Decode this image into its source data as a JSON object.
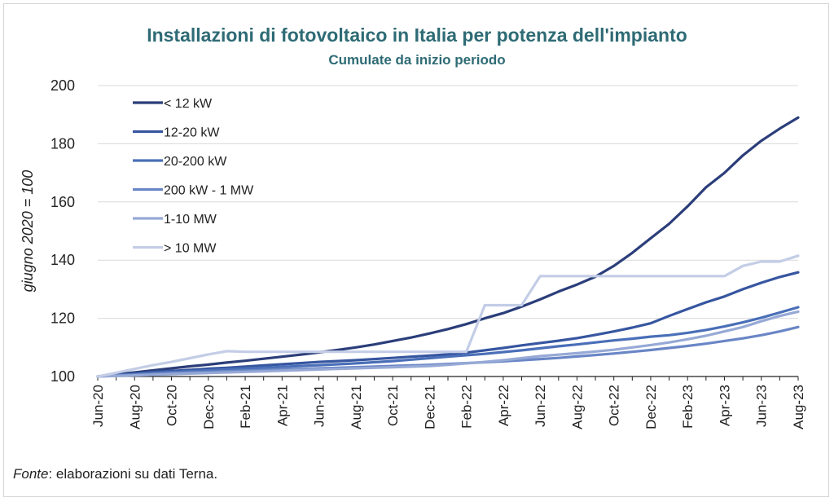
{
  "title": "Installazioni di fotovoltaico in Italia per potenza dell'impianto",
  "subtitle": "Cumulate da inizio periodo",
  "source_label": "Fonte",
  "source_text": ": elaborazioni su dati Terna.",
  "chart_data": {
    "type": "line",
    "title": "Installazioni di fotovoltaico in Italia per potenza dell'impianto",
    "subtitle": "Cumulate da inizio periodo",
    "ylabel": "giugno 2020 = 100",
    "xlabel": "",
    "ylim": [
      100,
      200
    ],
    "yticks": [
      100,
      120,
      140,
      160,
      180,
      200
    ],
    "grid": true,
    "legend_position": "top-left",
    "x": [
      "Jun-20",
      "Jul-20",
      "Aug-20",
      "Sep-20",
      "Oct-20",
      "Nov-20",
      "Dec-20",
      "Jan-21",
      "Feb-21",
      "Mar-21",
      "Apr-21",
      "May-21",
      "Jun-21",
      "Jul-21",
      "Aug-21",
      "Sep-21",
      "Oct-21",
      "Nov-21",
      "Dec-21",
      "Jan-22",
      "Feb-22",
      "Mar-22",
      "Apr-22",
      "May-22",
      "Jun-22",
      "Jul-22",
      "Aug-22",
      "Sep-22",
      "Oct-22",
      "Nov-22",
      "Dec-22",
      "Jan-23",
      "Feb-23",
      "Mar-23",
      "Apr-23",
      "May-23",
      "Jun-23",
      "Jul-23",
      "Aug-23"
    ],
    "xtick_labels": [
      "Jun-20",
      "Aug-20",
      "Oct-20",
      "Dec-20",
      "Feb-21",
      "Apr-21",
      "Jun-21",
      "Aug-21",
      "Oct-21",
      "Dec-21",
      "Feb-22",
      "Apr-22",
      "Jun-22",
      "Aug-22",
      "Oct-22",
      "Dec-22",
      "Feb-23",
      "Apr-23",
      "Jun-23",
      "Aug-23"
    ],
    "series": [
      {
        "name": "< 12 kW",
        "color": "#2b3e7a",
        "values": [
          100,
          100.7,
          101.4,
          102.1,
          102.8,
          103.5,
          104.1,
          104.8,
          105.4,
          106.1,
          106.8,
          107.5,
          108.3,
          109.1,
          110.0,
          111.0,
          112.2,
          113.4,
          114.8,
          116.3,
          118.0,
          120.0,
          121.8,
          124.0,
          126.5,
          129.2,
          131.6,
          134.3,
          138.0,
          142.5,
          147.5,
          152.5,
          158.5,
          165.0,
          170.0,
          176.0,
          181.0,
          185.2,
          189.0
        ]
      },
      {
        "name": "12-20 kW",
        "color": "#3656a0",
        "values": [
          100,
          100.5,
          101.0,
          101.5,
          101.9,
          102.3,
          102.7,
          103.0,
          103.4,
          103.8,
          104.2,
          104.6,
          105.0,
          105.3,
          105.6,
          106.0,
          106.4,
          106.8,
          107.2,
          107.6,
          108.2,
          109.0,
          109.8,
          110.7,
          111.5,
          112.3,
          113.2,
          114.3,
          115.5,
          116.8,
          118.3,
          120.8,
          123.2,
          125.5,
          127.5,
          130.0,
          132.2,
          134.2,
          135.8
        ]
      },
      {
        "name": "20-200 kW",
        "color": "#4a6fb8",
        "values": [
          100,
          100.4,
          100.8,
          101.2,
          101.5,
          101.8,
          102.1,
          102.4,
          102.7,
          103.0,
          103.3,
          103.6,
          103.9,
          104.2,
          104.5,
          104.9,
          105.3,
          105.8,
          106.3,
          106.8,
          107.3,
          107.8,
          108.4,
          109.0,
          109.7,
          110.4,
          111.0,
          111.7,
          112.4,
          113.0,
          113.7,
          114.2,
          115.0,
          116.0,
          117.2,
          118.6,
          120.2,
          122.0,
          123.8
        ]
      },
      {
        "name": "200 kW - 1 MW",
        "color": "#6a86c6",
        "values": [
          100,
          100.3,
          100.6,
          100.9,
          101.2,
          101.4,
          101.6,
          101.8,
          102.0,
          102.2,
          102.4,
          102.6,
          102.8,
          103.0,
          103.2,
          103.4,
          103.6,
          103.8,
          104.0,
          104.3,
          104.6,
          104.9,
          105.2,
          105.6,
          106.0,
          106.4,
          106.9,
          107.4,
          107.9,
          108.5,
          109.1,
          109.8,
          110.5,
          111.3,
          112.2,
          113.1,
          114.2,
          115.5,
          117.0
        ]
      },
      {
        "name": "1-10 MW",
        "color": "#96a9d6",
        "values": [
          100,
          100.2,
          100.4,
          100.6,
          100.8,
          101.0,
          101.2,
          101.4,
          101.6,
          101.8,
          102.0,
          102.2,
          102.4,
          102.6,
          102.8,
          103.0,
          103.2,
          103.4,
          103.6,
          104.0,
          104.5,
          105.0,
          105.6,
          106.3,
          107.0,
          107.5,
          108.0,
          108.6,
          109.2,
          110.0,
          110.8,
          111.7,
          112.8,
          114.0,
          115.5,
          117.0,
          119.0,
          120.8,
          122.3
        ]
      },
      {
        "name": "> 10 MW",
        "color": "#c3cde6",
        "values": [
          100,
          101.3,
          102.6,
          103.9,
          105.0,
          106.3,
          107.6,
          108.7,
          108.5,
          108.5,
          108.5,
          108.5,
          108.5,
          108.5,
          108.5,
          108.5,
          108.5,
          108.5,
          108.5,
          108.5,
          108.5,
          124.5,
          124.5,
          124.5,
          134.5,
          134.5,
          134.5,
          134.5,
          134.5,
          134.5,
          134.5,
          134.5,
          134.5,
          134.5,
          134.5,
          138.0,
          139.5,
          139.5,
          141.5
        ]
      }
    ]
  }
}
